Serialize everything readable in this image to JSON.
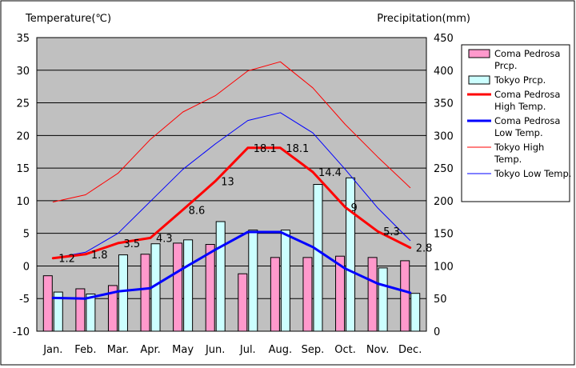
{
  "chart_data": {
    "type": "bar",
    "ylabel_left": "Temperature(℃)",
    "ylabel_right": "Precipitation(mm)",
    "categories": [
      "Jan.",
      "Feb.",
      "Mar.",
      "Apr.",
      "May",
      "Jun.",
      "Jul.",
      "Aug.",
      "Sep.",
      "Oct.",
      "Nov.",
      "Dec."
    ],
    "ylim_left": [
      -10,
      35
    ],
    "yticks_left": [
      "35",
      "30",
      "25",
      "20",
      "15",
      "10",
      "5",
      "0",
      "-5",
      "-10"
    ],
    "ylim_right": [
      0,
      450
    ],
    "yticks_right": [
      "450",
      "400",
      "350",
      "300",
      "250",
      "200",
      "150",
      "100",
      "50",
      "0"
    ],
    "grid": "horizontal",
    "legend_position": "right",
    "plot_background": "#C0C0C0",
    "bar_series": [
      {
        "name": "Coma Pedrosa Prcp.",
        "color": "#FF99CC",
        "values": [
          85,
          65,
          70,
          118,
          135,
          133,
          88,
          113,
          113,
          115,
          113,
          108
        ]
      },
      {
        "name": "Tokyo Prcp.",
        "color": "#CCFFFF",
        "values": [
          60,
          57,
          117,
          134,
          140,
          168,
          155,
          155,
          225,
          235,
          97,
          58
        ]
      }
    ],
    "line_series": [
      {
        "name": "Coma Pedrosa High Temp.",
        "color": "#FF0000",
        "width": 3,
        "values": [
          1.2,
          1.8,
          3.5,
          4.3,
          8.6,
          13,
          18.1,
          18.1,
          14.4,
          9,
          5.3,
          2.8
        ],
        "labels": [
          "1.2",
          "1.8",
          "3.5",
          "4.3",
          "8.6",
          "13",
          "18.1",
          "18.1",
          "14.4",
          "9",
          "5.3",
          "2.8"
        ]
      },
      {
        "name": "Coma Pedrosa Low Temp.",
        "color": "#0000FF",
        "width": 3,
        "values": [
          -4.9,
          -5.0,
          -3.9,
          -3.4,
          -0.4,
          2.5,
          5.2,
          5.2,
          2.9,
          -0.4,
          -2.7,
          -4.1
        ]
      },
      {
        "name": "Tokyo High Temp.",
        "color": "#FF0000",
        "width": 1,
        "values": [
          9.8,
          10.9,
          14.2,
          19.4,
          23.6,
          26.1,
          29.9,
          31.3,
          27.3,
          21.7,
          16.7,
          12.0
        ]
      },
      {
        "name": "Tokyo Low Temp.",
        "color": "#0000FF",
        "width": 1,
        "values": [
          1.2,
          2.1,
          5.0,
          9.9,
          14.8,
          18.7,
          22.3,
          23.5,
          20.4,
          14.8,
          8.9,
          3.9
        ]
      }
    ],
    "legend": [
      {
        "text": "Coma Pedrosa Prcp.",
        "kind": "box",
        "color": "#FF99CC"
      },
      {
        "text": "Tokyo Prcp.",
        "kind": "box",
        "color": "#CCFFFF"
      },
      {
        "text": "Coma Pedrosa High Temp.",
        "kind": "line",
        "color": "#FF0000",
        "width": 3
      },
      {
        "text": "Coma Pedrosa Low Temp.",
        "kind": "line",
        "color": "#0000FF",
        "width": 3
      },
      {
        "text": "Tokyo High Temp.",
        "kind": "line",
        "color": "#FF0000",
        "width": 1
      },
      {
        "text": "Tokyo Low Temp.",
        "kind": "line",
        "color": "#0000FF",
        "width": 1
      }
    ]
  }
}
